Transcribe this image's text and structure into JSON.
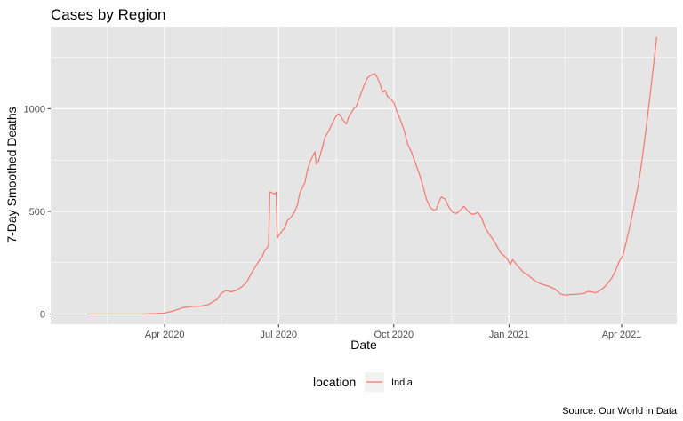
{
  "chart_data": {
    "type": "line",
    "title": "Cases by Region",
    "xlabel": "Date",
    "ylabel": "7-Day Smoothed Deaths",
    "caption": "Source:  Our World in Data",
    "legend": {
      "title": "location",
      "position": "bottom"
    },
    "grid": true,
    "colors": {
      "panel": "#e5e5e5",
      "grid": "#ffffff",
      "series": "#f8766d"
    },
    "xlim": [
      "2020-01-01",
      "2021-05-15"
    ],
    "ylim": [
      -50,
      1400
    ],
    "x_ticks": [
      {
        "date": "2020-04-01",
        "label": "Apr 2020"
      },
      {
        "date": "2020-07-01",
        "label": "Jul 2020"
      },
      {
        "date": "2020-10-01",
        "label": "Oct 2020"
      },
      {
        "date": "2021-01-01",
        "label": "Jan 2021"
      },
      {
        "date": "2021-04-01",
        "label": "Apr 2021"
      }
    ],
    "x_minor_ticks": [
      "2020-02-15",
      "2020-05-16",
      "2020-08-16",
      "2020-11-16",
      "2021-02-15"
    ],
    "y_ticks": [
      0,
      500,
      1000
    ],
    "y_minor_ticks": [
      250,
      750,
      1250
    ],
    "series": [
      {
        "name": "India",
        "points": [
          [
            "2020-01-30",
            0
          ],
          [
            "2020-02-29",
            0
          ],
          [
            "2020-03-15",
            0
          ],
          [
            "2020-03-25",
            2
          ],
          [
            "2020-04-01",
            5
          ],
          [
            "2020-04-08",
            15
          ],
          [
            "2020-04-15",
            30
          ],
          [
            "2020-04-22",
            36
          ],
          [
            "2020-04-29",
            38
          ],
          [
            "2020-05-06",
            46
          ],
          [
            "2020-05-13",
            72
          ],
          [
            "2020-05-16",
            100
          ],
          [
            "2020-05-20",
            115
          ],
          [
            "2020-05-24",
            108
          ],
          [
            "2020-05-28",
            115
          ],
          [
            "2020-06-01",
            130
          ],
          [
            "2020-06-05",
            150
          ],
          [
            "2020-06-09",
            195
          ],
          [
            "2020-06-12",
            225
          ],
          [
            "2020-06-15",
            255
          ],
          [
            "2020-06-18",
            280
          ],
          [
            "2020-06-20",
            310
          ],
          [
            "2020-06-22",
            325
          ],
          [
            "2020-06-23",
            330
          ],
          [
            "2020-06-24",
            595
          ],
          [
            "2020-06-26",
            590
          ],
          [
            "2020-06-28",
            585
          ],
          [
            "2020-06-29",
            595
          ],
          [
            "2020-06-30",
            370
          ],
          [
            "2020-07-02",
            390
          ],
          [
            "2020-07-04",
            405
          ],
          [
            "2020-07-06",
            420
          ],
          [
            "2020-07-08",
            455
          ],
          [
            "2020-07-10",
            465
          ],
          [
            "2020-07-12",
            480
          ],
          [
            "2020-07-14",
            500
          ],
          [
            "2020-07-16",
            530
          ],
          [
            "2020-07-18",
            590
          ],
          [
            "2020-07-20",
            615
          ],
          [
            "2020-07-22",
            640
          ],
          [
            "2020-07-24",
            700
          ],
          [
            "2020-07-26",
            740
          ],
          [
            "2020-07-28",
            765
          ],
          [
            "2020-07-30",
            790
          ],
          [
            "2020-07-31",
            730
          ],
          [
            "2020-08-02",
            745
          ],
          [
            "2020-08-04",
            790
          ],
          [
            "2020-08-07",
            860
          ],
          [
            "2020-08-10",
            890
          ],
          [
            "2020-08-13",
            930
          ],
          [
            "2020-08-16",
            965
          ],
          [
            "2020-08-18",
            975
          ],
          [
            "2020-08-20",
            960
          ],
          [
            "2020-08-22",
            940
          ],
          [
            "2020-08-24",
            925
          ],
          [
            "2020-08-26",
            960
          ],
          [
            "2020-08-28",
            980
          ],
          [
            "2020-08-30",
            1000
          ],
          [
            "2020-09-01",
            1010
          ],
          [
            "2020-09-04",
            1060
          ],
          [
            "2020-09-07",
            1110
          ],
          [
            "2020-09-10",
            1150
          ],
          [
            "2020-09-13",
            1165
          ],
          [
            "2020-09-16",
            1170
          ],
          [
            "2020-09-18",
            1150
          ],
          [
            "2020-09-20",
            1120
          ],
          [
            "2020-09-22",
            1080
          ],
          [
            "2020-09-24",
            1090
          ],
          [
            "2020-09-26",
            1060
          ],
          [
            "2020-09-28",
            1050
          ],
          [
            "2020-10-01",
            1030
          ],
          [
            "2020-10-03",
            995
          ],
          [
            "2020-10-06",
            950
          ],
          [
            "2020-10-09",
            900
          ],
          [
            "2020-10-12",
            830
          ],
          [
            "2020-10-15",
            790
          ],
          [
            "2020-10-18",
            740
          ],
          [
            "2020-10-21",
            690
          ],
          [
            "2020-10-24",
            630
          ],
          [
            "2020-10-27",
            560
          ],
          [
            "2020-10-30",
            520
          ],
          [
            "2020-11-02",
            505
          ],
          [
            "2020-11-04",
            510
          ],
          [
            "2020-11-06",
            545
          ],
          [
            "2020-11-08",
            570
          ],
          [
            "2020-11-11",
            560
          ],
          [
            "2020-11-14",
            520
          ],
          [
            "2020-11-17",
            495
          ],
          [
            "2020-11-20",
            490
          ],
          [
            "2020-11-23",
            505
          ],
          [
            "2020-11-26",
            525
          ],
          [
            "2020-11-28",
            510
          ],
          [
            "2020-12-01",
            490
          ],
          [
            "2020-12-04",
            485
          ],
          [
            "2020-12-07",
            495
          ],
          [
            "2020-12-10",
            470
          ],
          [
            "2020-12-13",
            420
          ],
          [
            "2020-12-16",
            390
          ],
          [
            "2020-12-19",
            365
          ],
          [
            "2020-12-22",
            335
          ],
          [
            "2020-12-25",
            300
          ],
          [
            "2020-12-28",
            285
          ],
          [
            "2020-12-31",
            265
          ],
          [
            "2021-01-02",
            240
          ],
          [
            "2021-01-04",
            265
          ],
          [
            "2021-01-07",
            240
          ],
          [
            "2021-01-10",
            220
          ],
          [
            "2021-01-13",
            200
          ],
          [
            "2021-01-16",
            190
          ],
          [
            "2021-01-19",
            175
          ],
          [
            "2021-01-22",
            160
          ],
          [
            "2021-01-26",
            148
          ],
          [
            "2021-01-30",
            140
          ],
          [
            "2021-02-03",
            132
          ],
          [
            "2021-02-07",
            120
          ],
          [
            "2021-02-11",
            98
          ],
          [
            "2021-02-15",
            92
          ],
          [
            "2021-02-20",
            95
          ],
          [
            "2021-02-25",
            97
          ],
          [
            "2021-03-02",
            100
          ],
          [
            "2021-03-05",
            110
          ],
          [
            "2021-03-08",
            108
          ],
          [
            "2021-03-11",
            103
          ],
          [
            "2021-03-14",
            112
          ],
          [
            "2021-03-18",
            130
          ],
          [
            "2021-03-21",
            150
          ],
          [
            "2021-03-24",
            175
          ],
          [
            "2021-03-27",
            210
          ],
          [
            "2021-03-30",
            255
          ],
          [
            "2021-04-02",
            285
          ],
          [
            "2021-04-05",
            360
          ],
          [
            "2021-04-08",
            440
          ],
          [
            "2021-04-11",
            530
          ],
          [
            "2021-04-14",
            620
          ],
          [
            "2021-04-17",
            740
          ],
          [
            "2021-04-20",
            880
          ],
          [
            "2021-04-23",
            1030
          ],
          [
            "2021-04-26",
            1190
          ],
          [
            "2021-04-29",
            1350
          ]
        ]
      }
    ]
  }
}
